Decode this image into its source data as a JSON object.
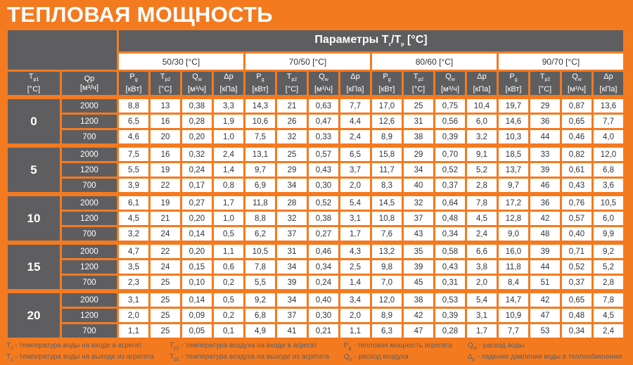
{
  "title": "ТЕПЛОВАЯ МОЩНОСТЬ",
  "colors": {
    "background": "#f47a1f",
    "header": "#5e5e61",
    "cell": "#ffffff"
  },
  "header": {
    "params": {
      "text": "Параметры T",
      "sub1": "z",
      "mid": "/T",
      "sub2": "p",
      "tail": " [°C]"
    },
    "tp1": {
      "main": "T",
      "sub": "p1",
      "unit": "[°C]"
    },
    "qp": {
      "main": "Qp",
      "unit": "[м³/ч]"
    },
    "groups": [
      "50/30 [°C]",
      "70/50 [°C]",
      "80/60 [°C]",
      "90/70 [°C]"
    ],
    "subcols": [
      {
        "main": "P",
        "sub": "g",
        "unit": "[кВт]"
      },
      {
        "main": "T",
        "sub": "p2",
        "unit": "[°C]"
      },
      {
        "main": "Q",
        "sub": "w",
        "unit": "[м³/ч]"
      },
      {
        "main": "Δp",
        "sub": "",
        "unit": "[кПа]"
      }
    ]
  },
  "rows": [
    {
      "tp1": "0",
      "items": [
        {
          "qp": "2000",
          "values": [
            "8,8",
            "13",
            "0,38",
            "3,3",
            "14,3",
            "21",
            "0,63",
            "7,7",
            "17,0",
            "25",
            "0,75",
            "10,4",
            "19,7",
            "29",
            "0,87",
            "13,6"
          ]
        },
        {
          "qp": "1200",
          "values": [
            "6,5",
            "16",
            "0,28",
            "1,9",
            "10,6",
            "26",
            "0,47",
            "4,4",
            "12,6",
            "31",
            "0,56",
            "6,0",
            "14,6",
            "36",
            "0,65",
            "7,7"
          ]
        },
        {
          "qp": "700",
          "values": [
            "4,6",
            "20",
            "0,20",
            "1,0",
            "7,5",
            "32",
            "0,33",
            "2,4",
            "8,9",
            "38",
            "0,39",
            "3,2",
            "10,3",
            "44",
            "0,46",
            "4,0"
          ]
        }
      ]
    },
    {
      "tp1": "5",
      "items": [
        {
          "qp": "2000",
          "values": [
            "7,5",
            "16",
            "0,32",
            "2,4",
            "13,1",
            "25",
            "0,57",
            "6,5",
            "15,8",
            "29",
            "0,70",
            "9,1",
            "18,5",
            "33",
            "0,82",
            "12,0"
          ]
        },
        {
          "qp": "1200",
          "values": [
            "5,5",
            "19",
            "0,24",
            "1,4",
            "9,7",
            "29",
            "0,43",
            "3,7",
            "11,7",
            "34",
            "0,52",
            "5,2",
            "13,7",
            "39",
            "0,61",
            "6,8"
          ]
        },
        {
          "qp": "700",
          "values": [
            "3,9",
            "22",
            "0,17",
            "0,8",
            "6,9",
            "34",
            "0,30",
            "2,0",
            "8,3",
            "40",
            "0,37",
            "2,8",
            "9,7",
            "46",
            "0,43",
            "3,6"
          ]
        }
      ]
    },
    {
      "tp1": "10",
      "items": [
        {
          "qp": "2000",
          "values": [
            "6,1",
            "19",
            "0,27",
            "1,7",
            "11,8",
            "28",
            "0,52",
            "5,4",
            "14,5",
            "32",
            "0,64",
            "7,8",
            "17,2",
            "36",
            "0,76",
            "10,5"
          ]
        },
        {
          "qp": "1200",
          "values": [
            "4,5",
            "21",
            "0,20",
            "1,0",
            "8,8",
            "32",
            "0,38",
            "3,1",
            "10,8",
            "37",
            "0,48",
            "4,5",
            "12,8",
            "42",
            "0,57",
            "6,0"
          ]
        },
        {
          "qp": "700",
          "values": [
            "3,2",
            "24",
            "0,14",
            "0,5",
            "6,2",
            "37",
            "0,27",
            "1,7",
            "7,6",
            "43",
            "0,34",
            "2,4",
            "9,0",
            "48",
            "0,40",
            "9,9"
          ]
        }
      ]
    },
    {
      "tp1": "15",
      "items": [
        {
          "qp": "2000",
          "values": [
            "4,7",
            "22",
            "0,20",
            "1,1",
            "10,5",
            "31",
            "0,46",
            "4,3",
            "13,2",
            "35",
            "0,58",
            "6,6",
            "16,0",
            "39",
            "0,71",
            "9,2"
          ]
        },
        {
          "qp": "1200",
          "values": [
            "3,5",
            "24",
            "0,15",
            "0,6",
            "7,8",
            "34",
            "0,34",
            "2,5",
            "9,8",
            "39",
            "0,43",
            "3,8",
            "11,8",
            "44",
            "0,52",
            "5,2"
          ]
        },
        {
          "qp": "700",
          "values": [
            "2,3",
            "25",
            "0,10",
            "0,2",
            "5,5",
            "39",
            "0,24",
            "1,4",
            "7,0",
            "45",
            "0,31",
            "2,0",
            "8,4",
            "51",
            "0,37",
            "2,8"
          ]
        }
      ]
    },
    {
      "tp1": "20",
      "items": [
        {
          "qp": "2000",
          "values": [
            "3,1",
            "25",
            "0,14",
            "0,5",
            "9,2",
            "34",
            "0,40",
            "3,4",
            "12,0",
            "38",
            "0,53",
            "5,4",
            "14,7",
            "42",
            "0,65",
            "7,8"
          ]
        },
        {
          "qp": "1200",
          "values": [
            "2,0",
            "25",
            "0,09",
            "0,2",
            "6,8",
            "37",
            "0,30",
            "2,0",
            "8,9",
            "42",
            "0,39",
            "3,1",
            "10,9",
            "47",
            "0,48",
            "4,5"
          ]
        },
        {
          "qp": "700",
          "values": [
            "1,1",
            "25",
            "0,05",
            "0,1",
            "4,9",
            "41",
            "0,21",
            "1,1",
            "6,3",
            "47",
            "0,28",
            "1,7",
            "7,7",
            "53",
            "0,34",
            "2,4"
          ]
        }
      ]
    }
  ],
  "legend": [
    [
      {
        "sym": "T",
        "sub": "z",
        "text": " - температура воды на входе в агрегат"
      },
      {
        "sym": "T",
        "sub": "s",
        "text": " - температура воды на выходе из агрегата"
      }
    ],
    [
      {
        "sym": "T",
        "sub": "p1",
        "text": " - температура воздуха на входе в агрегат"
      },
      {
        "sym": "T",
        "sub": "p2",
        "text": " - температура воздуха на выходе из агрегата"
      }
    ],
    [
      {
        "sym": "P",
        "sub": "g",
        "text": " - тепловая мощность агрегата"
      },
      {
        "sym": "Q",
        "sub": "p",
        "text": " - расход воздуха"
      }
    ],
    [
      {
        "sym": "Q",
        "sub": "w",
        "text": " - расход воды"
      },
      {
        "sym": "Δ",
        "sub": "p",
        "text": " - падение давления воды в теплообменнике"
      }
    ]
  ]
}
